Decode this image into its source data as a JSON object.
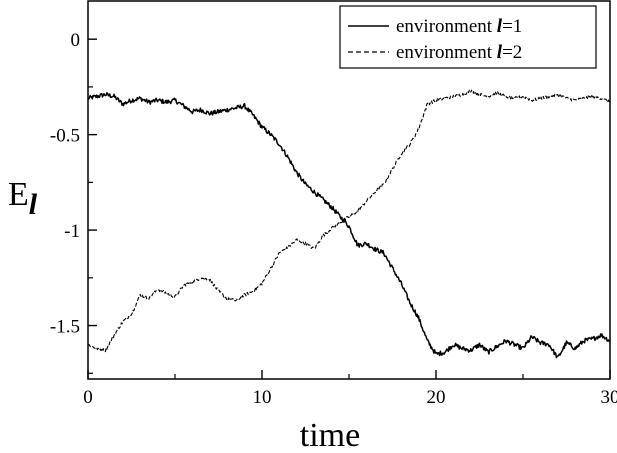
{
  "chart_data": {
    "type": "line",
    "xlabel": "time",
    "ylabel": {
      "main": "E",
      "sub": "l"
    },
    "xlim": [
      0,
      30
    ],
    "ylim": [
      -1.78,
      0.2
    ],
    "xticks": [
      0,
      10,
      20,
      30
    ],
    "xtick_labels": [
      "0",
      "10",
      "20",
      "30"
    ],
    "yticks": [
      0,
      -0.5,
      -1,
      -1.5
    ],
    "ytick_labels": [
      "0",
      "-0.5",
      "-1",
      "-1.5"
    ],
    "grid": false,
    "legend_position": "top-right",
    "series": [
      {
        "name": "environment l=1",
        "legend": {
          "prefix": "environment ",
          "var": "l",
          "suffix": "=1"
        },
        "style": "solid",
        "color": "#000000",
        "x": [
          0,
          0.5,
          1,
          1.5,
          2,
          2.5,
          3,
          3.5,
          4,
          4.5,
          5,
          5.5,
          6,
          6.5,
          7,
          7.5,
          8,
          8.5,
          9,
          9.5,
          10,
          10.5,
          11,
          11.5,
          12,
          12.5,
          13,
          13.5,
          14,
          14.5,
          15,
          15.5,
          16,
          16.5,
          17,
          17.5,
          18,
          18.5,
          19,
          19.5,
          20,
          20.5,
          21,
          21.5,
          22,
          22.5,
          23,
          23.5,
          24,
          24.5,
          25,
          25.5,
          26,
          26.5,
          27,
          27.5,
          28,
          28.5,
          29,
          29.5,
          30
        ],
        "y": [
          -0.31,
          -0.3,
          -0.29,
          -0.3,
          -0.34,
          -0.32,
          -0.31,
          -0.33,
          -0.32,
          -0.33,
          -0.32,
          -0.35,
          -0.38,
          -0.37,
          -0.39,
          -0.38,
          -0.37,
          -0.36,
          -0.35,
          -0.4,
          -0.46,
          -0.5,
          -0.55,
          -0.62,
          -0.7,
          -0.76,
          -0.8,
          -0.84,
          -0.88,
          -0.93,
          -0.98,
          -1.08,
          -1.07,
          -1.1,
          -1.12,
          -1.2,
          -1.28,
          -1.38,
          -1.46,
          -1.58,
          -1.65,
          -1.64,
          -1.6,
          -1.62,
          -1.63,
          -1.6,
          -1.64,
          -1.61,
          -1.58,
          -1.6,
          -1.62,
          -1.56,
          -1.59,
          -1.6,
          -1.67,
          -1.59,
          -1.62,
          -1.58,
          -1.57,
          -1.55,
          -1.58
        ],
        "jitter": 0.012
      },
      {
        "name": "environment l=2",
        "legend": {
          "prefix": "environment ",
          "var": "l",
          "suffix": "=2"
        },
        "style": "dashed",
        "color": "#000000",
        "x": [
          0,
          0.5,
          1,
          1.5,
          2,
          2.5,
          3,
          3.5,
          4,
          4.5,
          5,
          5.5,
          6,
          6.5,
          7,
          7.5,
          8,
          8.5,
          9,
          9.5,
          10,
          10.5,
          11,
          11.5,
          12,
          12.5,
          13,
          13.5,
          14,
          14.5,
          15,
          15.5,
          16,
          16.5,
          17,
          17.5,
          18,
          18.5,
          19,
          19.5,
          20,
          20.5,
          21,
          21.5,
          22,
          22.5,
          23,
          23.5,
          24,
          24.5,
          25,
          25.5,
          26,
          26.5,
          27,
          27.5,
          28,
          28.5,
          29,
          29.5,
          30
        ],
        "y": [
          -1.6,
          -1.62,
          -1.63,
          -1.55,
          -1.48,
          -1.44,
          -1.34,
          -1.36,
          -1.31,
          -1.33,
          -1.35,
          -1.29,
          -1.27,
          -1.25,
          -1.26,
          -1.32,
          -1.36,
          -1.37,
          -1.34,
          -1.32,
          -1.28,
          -1.2,
          -1.12,
          -1.09,
          -1.05,
          -1.07,
          -1.1,
          -1.03,
          -0.99,
          -0.96,
          -0.93,
          -0.9,
          -0.85,
          -0.8,
          -0.76,
          -0.68,
          -0.6,
          -0.55,
          -0.47,
          -0.34,
          -0.32,
          -0.31,
          -0.3,
          -0.29,
          -0.27,
          -0.29,
          -0.3,
          -0.28,
          -0.3,
          -0.31,
          -0.3,
          -0.32,
          -0.31,
          -0.3,
          -0.29,
          -0.31,
          -0.32,
          -0.31,
          -0.3,
          -0.31,
          -0.33
        ],
        "jitter": 0.008
      }
    ]
  }
}
